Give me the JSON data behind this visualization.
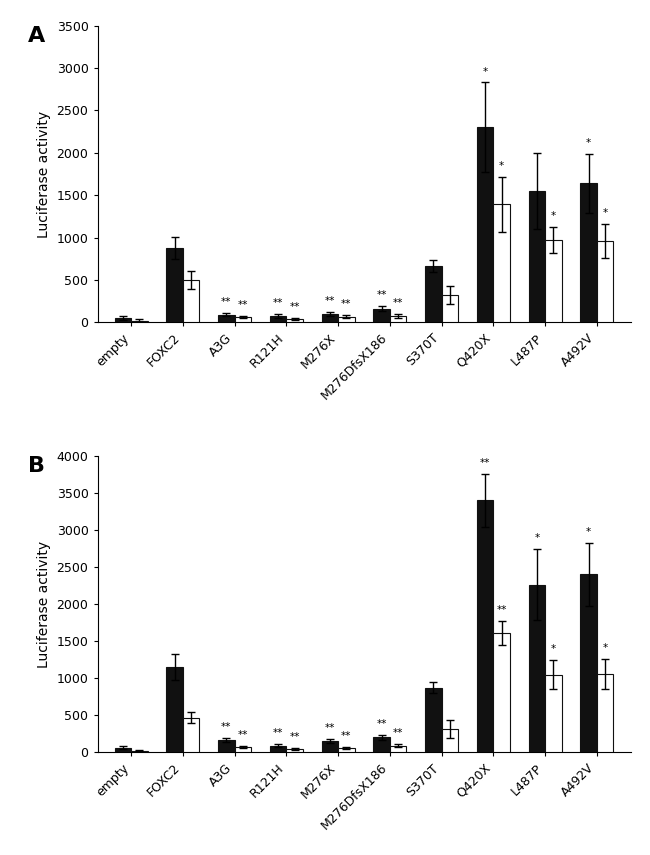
{
  "categories": [
    "empty",
    "FOXC2",
    "A3G",
    "R121H",
    "M276X",
    "M276DfsX186",
    "S370T",
    "Q420X",
    "L487P",
    "A492V"
  ],
  "panel_A": {
    "black_vals": [
      50,
      880,
      90,
      75,
      100,
      160,
      660,
      2300,
      1550,
      1640
    ],
    "white_vals": [
      20,
      500,
      60,
      40,
      65,
      75,
      320,
      1390,
      970,
      960
    ],
    "black_err": [
      20,
      130,
      20,
      20,
      25,
      30,
      70,
      530,
      450,
      350
    ],
    "white_err": [
      15,
      110,
      15,
      15,
      20,
      20,
      110,
      320,
      150,
      200
    ],
    "ylim": [
      0,
      3500
    ],
    "yticks": [
      0,
      500,
      1000,
      1500,
      2000,
      2500,
      3000,
      3500
    ],
    "label": "A",
    "annot_black": [
      "",
      "",
      "**",
      "**",
      "**",
      "**",
      "",
      "*",
      "",
      "*"
    ],
    "annot_white": [
      "",
      "",
      "**",
      "**",
      "**",
      "**",
      "",
      "*",
      "*",
      "*"
    ]
  },
  "panel_B": {
    "black_vals": [
      60,
      1150,
      170,
      90,
      150,
      205,
      875,
      3400,
      2260,
      2400
    ],
    "white_vals": [
      25,
      470,
      75,
      45,
      55,
      90,
      320,
      1610,
      1050,
      1060
    ],
    "black_err": [
      20,
      180,
      30,
      20,
      25,
      35,
      80,
      360,
      480,
      420
    ],
    "white_err": [
      10,
      80,
      15,
      12,
      15,
      20,
      120,
      160,
      200,
      200
    ],
    "ylim": [
      0,
      4000
    ],
    "yticks": [
      0,
      500,
      1000,
      1500,
      2000,
      2500,
      3000,
      3500,
      4000
    ],
    "label": "B",
    "annot_black": [
      "",
      "",
      "**",
      "**",
      "**",
      "**",
      "",
      "**",
      "*",
      "*"
    ],
    "annot_white": [
      "",
      "",
      "**",
      "**",
      "**",
      "**",
      "",
      "**",
      "*",
      "*"
    ]
  },
  "bar_width": 0.32,
  "black_color": "#111111",
  "white_color": "#ffffff",
  "edge_color": "#111111",
  "ylabel": "Luciferase activity",
  "figsize": [
    6.5,
    8.55
  ],
  "dpi": 100
}
